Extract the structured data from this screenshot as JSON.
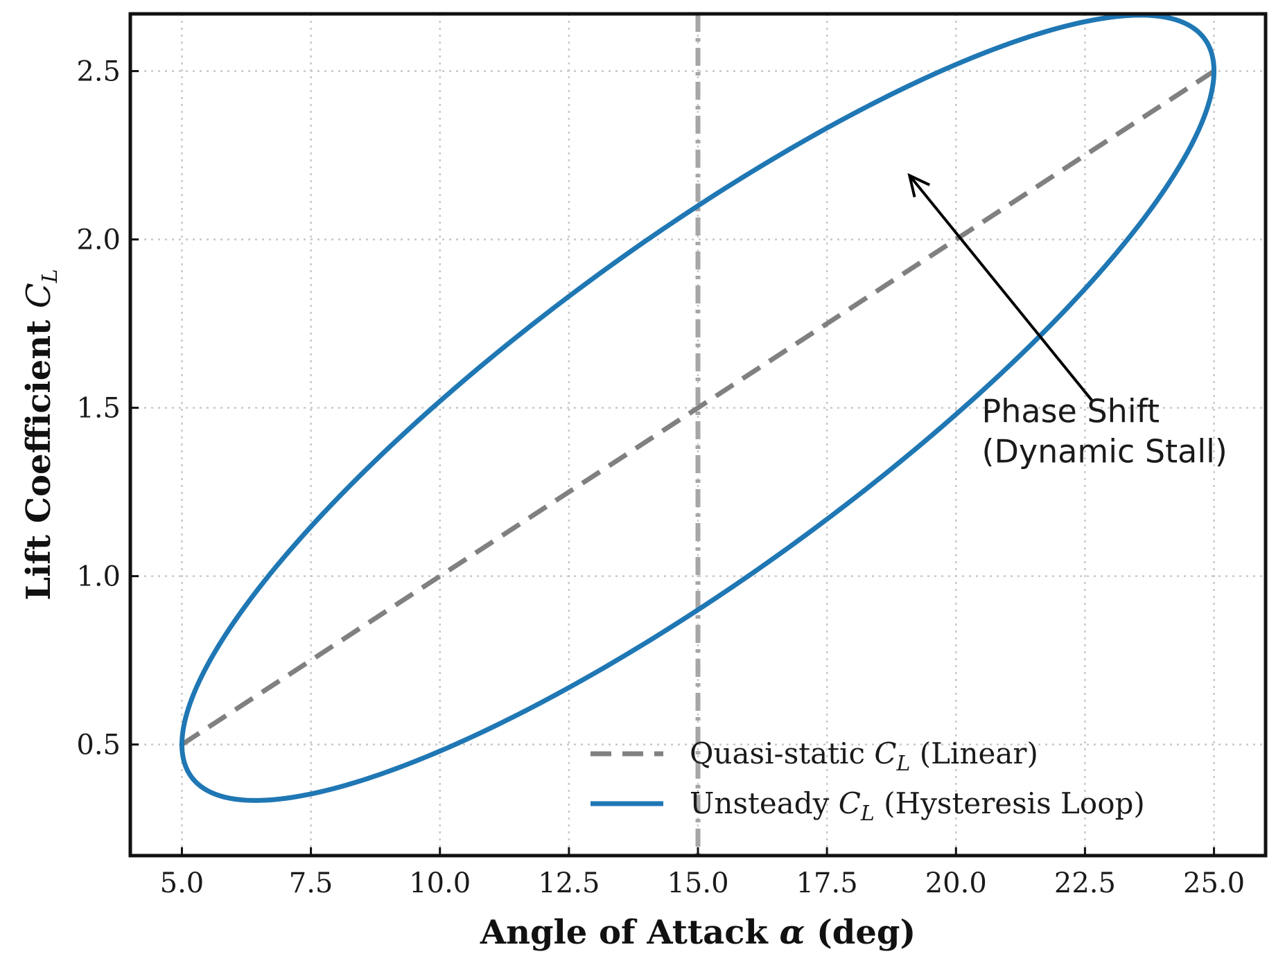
{
  "chart_data": {
    "type": "line",
    "xlabel": {
      "before": "Angle of Attack ",
      "symbol": "α",
      "after": " (deg)"
    },
    "ylabel": {
      "text": "Lift Coefficient ",
      "symbol": "C",
      "sub": "L"
    },
    "xlim": [
      4.0,
      26.0
    ],
    "ylim": [
      0.17,
      2.67
    ],
    "xticks": [
      5.0,
      7.5,
      10.0,
      12.5,
      15.0,
      17.5,
      20.0,
      22.5,
      25.0
    ],
    "yticks": [
      0.5,
      1.0,
      1.5,
      2.0,
      2.5
    ],
    "xtick_labels": [
      "5.0",
      "7.5",
      "10.0",
      "12.5",
      "15.0",
      "17.5",
      "20.0",
      "22.5",
      "25.0"
    ],
    "ytick_labels": [
      "0.5",
      "1.0",
      "1.5",
      "2.0",
      "2.5"
    ],
    "grid": true,
    "grid_style": "dotted",
    "reference_line": {
      "x": 15.0,
      "style": "dash-dot",
      "color": "#a6a6a6"
    },
    "legend_position": "bottom-right",
    "series": [
      {
        "name": {
          "before": "Quasi-static ",
          "symbol": "C",
          "sub": "L",
          "after": " (Linear)"
        },
        "style": "dashed",
        "color": "#808080",
        "x": [
          5.0,
          25.0
        ],
        "y": [
          0.5,
          2.5
        ]
      },
      {
        "name": {
          "before": "Unsteady ",
          "symbol": "C",
          "sub": "L",
          "after": " (Hysteresis Loop)"
        },
        "style": "solid",
        "color": "#1f77b4",
        "model": "parametric alpha = 15 - 10 cos(t); C_L = 1.5 - cos(t) + 0.6 sin(t); t in [0, 2π]",
        "x": [
          5.0,
          6.5,
          10.0,
          15.0,
          20.0,
          23.5,
          25.0,
          23.5,
          20.0,
          15.0,
          10.0,
          6.5,
          5.0
        ],
        "y": [
          0.5,
          0.88,
          1.52,
          2.1,
          2.52,
          2.65,
          2.5,
          2.05,
          1.48,
          0.9,
          0.48,
          0.35,
          0.5
        ]
      }
    ],
    "annotations": [
      {
        "text_lines": [
          "Phase Shift",
          "(Dynamic Stall)"
        ],
        "text_x": 20.5,
        "text_y": 1.55,
        "arrow_to_x": 19.1,
        "arrow_to_y": 2.19
      }
    ]
  }
}
